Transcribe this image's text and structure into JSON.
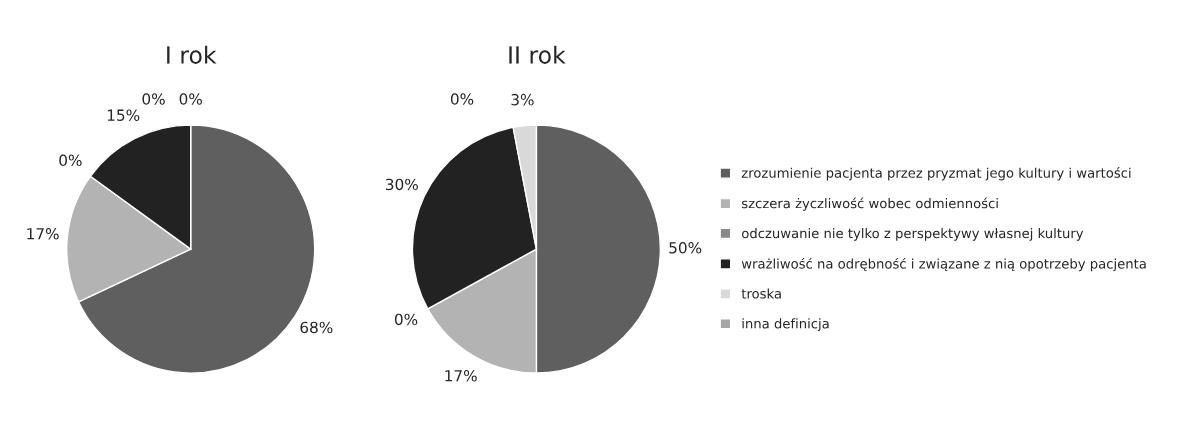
{
  "chart_data": [
    {
      "type": "pie",
      "title": "I rok",
      "categories": [
        "zrozumienie pacjenta przez pryzmat jego kultury i wartości",
        "szczera życzliwość wobec odmienności",
        "odczuwanie nie tylko z perspektywy własnej kultury",
        "wrażliwość na odrębność i związane z nią opotrzeby pacjenta",
        "troska",
        "inna definicja"
      ],
      "values": [
        68,
        17,
        0,
        15,
        0,
        0
      ],
      "value_labels": [
        "68%",
        "17%",
        "0%",
        "15%",
        "0%",
        "0%"
      ],
      "colors": [
        "#5f5f5f",
        "#b3b3b3",
        "#8a8a8a",
        "#222222",
        "#d9d9d9",
        "#a6a6a6"
      ],
      "legend": "right"
    },
    {
      "type": "pie",
      "title": "II rok",
      "values": [
        50,
        17,
        0,
        30,
        3,
        0
      ],
      "value_labels": [
        "50%",
        "17%",
        "0%",
        "30%",
        "3%",
        "0%"
      ],
      "colors": [
        "#5f5f5f",
        "#b3b3b3",
        "#8a8a8a",
        "#222222",
        "#d9d9d9",
        "#a6a6a6"
      ],
      "legend": false
    }
  ]
}
